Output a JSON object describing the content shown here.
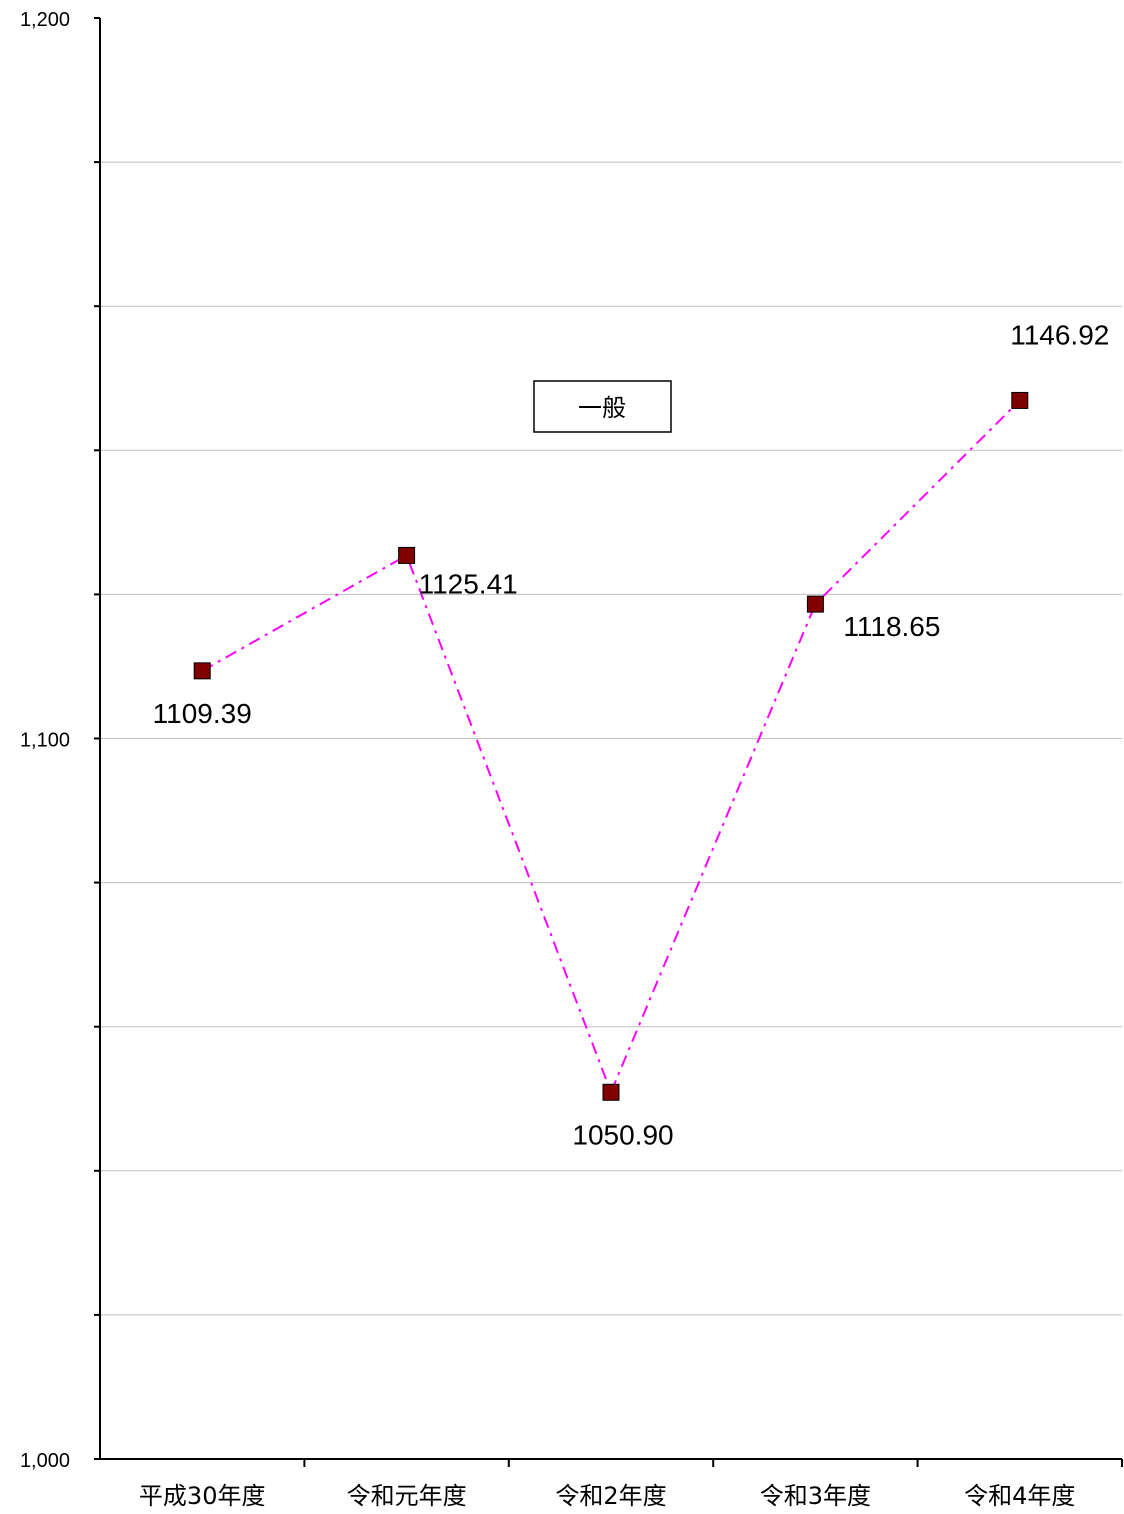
{
  "chart_data": {
    "type": "line",
    "categories": [
      "平成30年度",
      "令和元年度",
      "令和2年度",
      "令和3年度",
      "令和4年度"
    ],
    "series": [
      {
        "name": "一般",
        "values": [
          1109.39,
          1125.41,
          1050.9,
          1118.65,
          1146.92
        ],
        "value_labels": [
          "1109.39",
          "1125.41",
          "1050.90",
          "1118.65",
          "1146.92"
        ],
        "line_color": "#ff00ff",
        "line_style": "dash-dot",
        "marker": "square",
        "marker_color": "#800000"
      }
    ],
    "ylim": [
      1000,
      1200
    ],
    "y_ticks": [
      1000,
      1100,
      1200
    ],
    "y_tick_labels": [
      "1,000",
      "1,100",
      "1,200"
    ],
    "minor_grid_step": 20,
    "grid": true,
    "gridline_color": "#bfbfbf",
    "legend_position": "center-top",
    "title": "",
    "xlabel": "",
    "ylabel": ""
  }
}
